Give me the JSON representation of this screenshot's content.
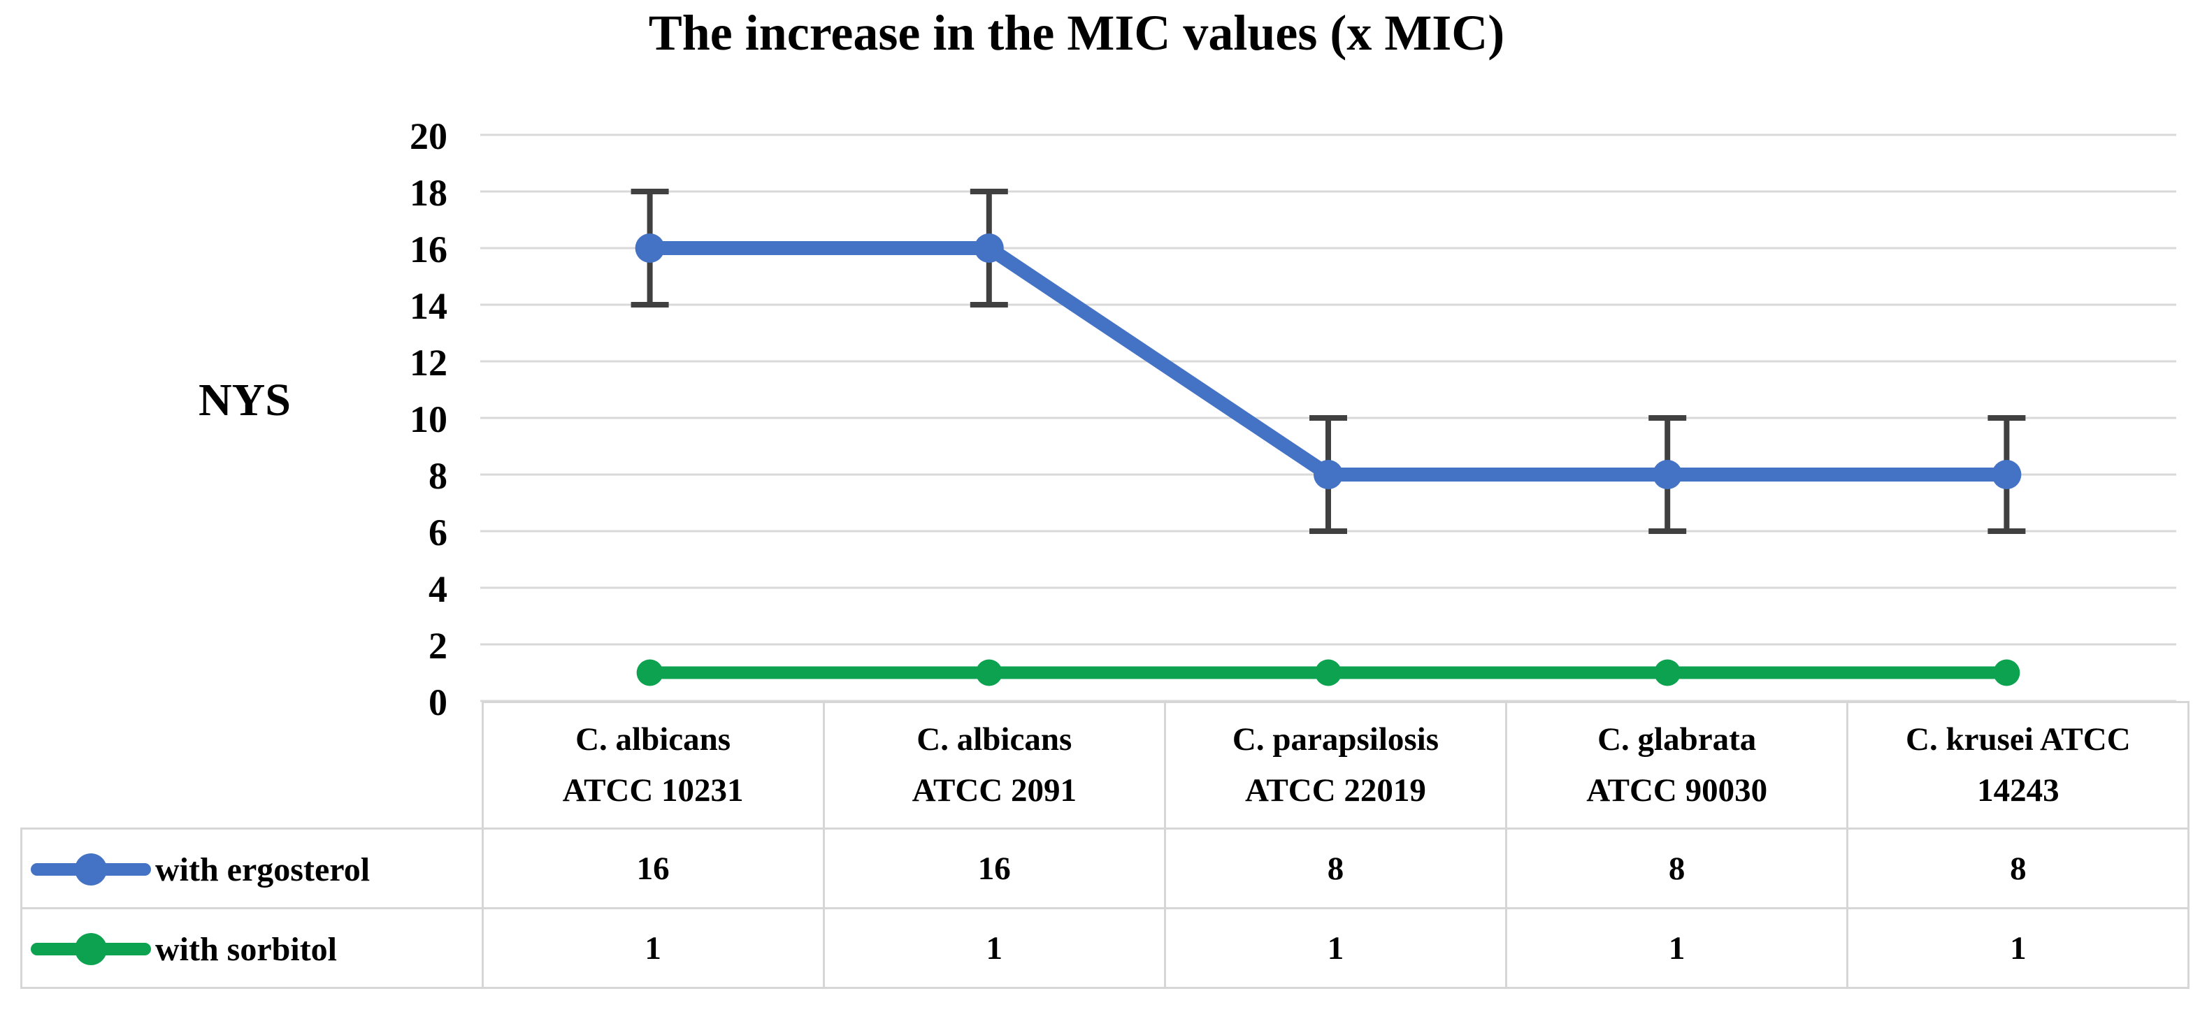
{
  "chart_data": {
    "type": "line",
    "title": "The increase in the MIC values (x MIC)",
    "ylabel": "NYS",
    "xlabel": "",
    "ylim": [
      0,
      20
    ],
    "yticks": [
      0,
      2,
      4,
      6,
      8,
      10,
      12,
      14,
      16,
      18,
      20
    ],
    "grid": true,
    "legend_position": "table-left",
    "categories": [
      [
        "C. albicans",
        "ATCC 10231"
      ],
      [
        "C. albicans",
        "ATCC 2091"
      ],
      [
        "C. parapsilosis",
        "ATCC 22019"
      ],
      [
        "C. glabrata",
        "ATCC 90030"
      ],
      [
        "C. krusei ATCC",
        "14243"
      ]
    ],
    "series": [
      {
        "name": "with ergosterol",
        "values": [
          16,
          16,
          8,
          8,
          8
        ],
        "color": "#4472C4",
        "marker": "circle",
        "error_bar": 2,
        "error_color": "#404040"
      },
      {
        "name": "with sorbitol",
        "values": [
          1,
          1,
          1,
          1,
          1
        ],
        "color": "#0CA24F",
        "marker": "circle",
        "error_bar": 0,
        "error_color": "#404040"
      }
    ]
  },
  "colors": {
    "gridline": "#D9D9D9",
    "table_border": "#D6D6D6",
    "background": "#FFFFFF",
    "text": "#000000"
  }
}
